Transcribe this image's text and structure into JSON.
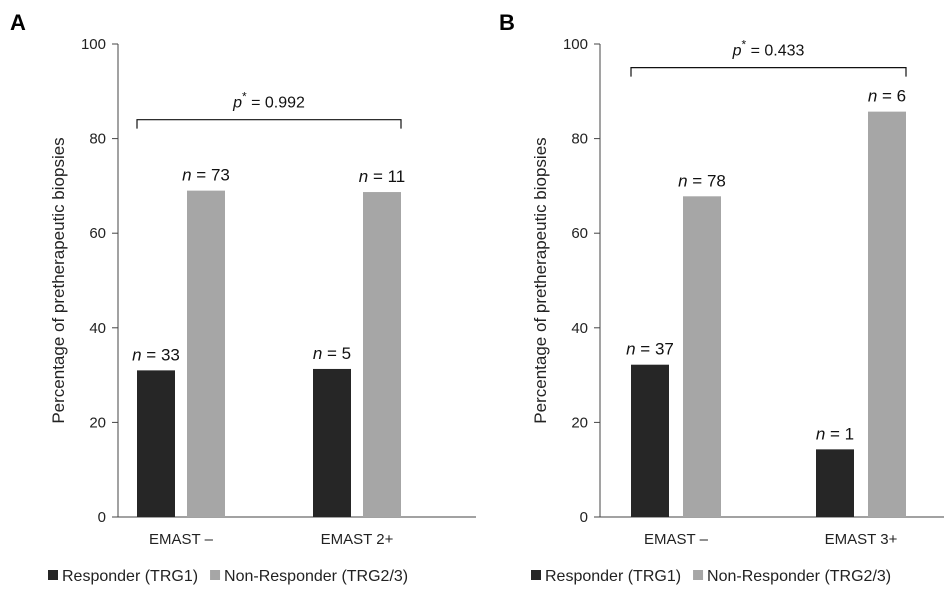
{
  "chart_data": [
    {
      "type": "bar",
      "panel": "A",
      "ylabel": "Percentage of pretherapeutic  biopsies",
      "ylim": [
        0,
        100
      ],
      "yticks": [
        0,
        20,
        40,
        60,
        80,
        100
      ],
      "categories": [
        "EMAST –",
        "EMAST 2+"
      ],
      "series": [
        {
          "name": "Responder (TRG1)",
          "color": "#262626",
          "values": [
            31,
            31.3
          ]
        },
        {
          "name": "Non-Responder (TRG2/3)",
          "color": "#a6a6a6",
          "values": [
            69,
            68.7
          ]
        }
      ],
      "data_labels": [
        {
          "category": 0,
          "series": 0,
          "n": "33"
        },
        {
          "category": 0,
          "series": 1,
          "n": "73"
        },
        {
          "category": 1,
          "series": 0,
          "n": "5"
        },
        {
          "category": 1,
          "series": 1,
          "n": "11"
        }
      ],
      "pvalue": {
        "prefix": "p",
        "star": "*",
        "text": " = 0.992",
        "level": 84
      },
      "legend_position": "bottom",
      "grid": false
    },
    {
      "type": "bar",
      "panel": "B",
      "ylabel": "Percentage of pretherapeutic  biopsies",
      "ylim": [
        0,
        100
      ],
      "yticks": [
        0,
        20,
        40,
        60,
        80,
        100
      ],
      "categories": [
        "EMAST –",
        "EMAST 3+"
      ],
      "series": [
        {
          "name": "Responder (TRG1)",
          "color": "#262626",
          "values": [
            32.2,
            14.3
          ]
        },
        {
          "name": "Non-Responder (TRG2/3)",
          "color": "#a6a6a6",
          "values": [
            67.8,
            85.7
          ]
        }
      ],
      "data_labels": [
        {
          "category": 0,
          "series": 0,
          "n": "37"
        },
        {
          "category": 0,
          "series": 1,
          "n": "78"
        },
        {
          "category": 1,
          "series": 0,
          "n": "1"
        },
        {
          "category": 1,
          "series": 1,
          "n": "6"
        }
      ],
      "pvalue": {
        "prefix": "p",
        "star": "*",
        "text": " = 0.433",
        "level": 95
      },
      "legend_position": "bottom",
      "grid": false
    }
  ]
}
